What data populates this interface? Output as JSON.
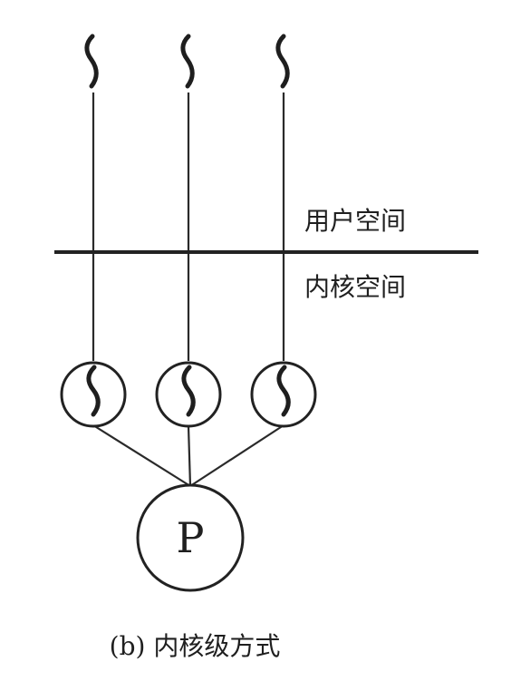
{
  "diagram": {
    "labels": {
      "user_space": "用户空间",
      "kernel_space": "内核空间",
      "processor": "P",
      "caption": "(b) 内核级方式"
    },
    "threads": [
      {
        "id": "thread-1"
      },
      {
        "id": "thread-2"
      },
      {
        "id": "thread-3"
      }
    ],
    "colors": {
      "ink": "#222222",
      "background": "#ffffff"
    },
    "icons": {
      "user_thread": "wave-thread-icon",
      "kernel_thread": "kernel-thread-circle-icon",
      "processor": "processor-circle-icon"
    }
  }
}
